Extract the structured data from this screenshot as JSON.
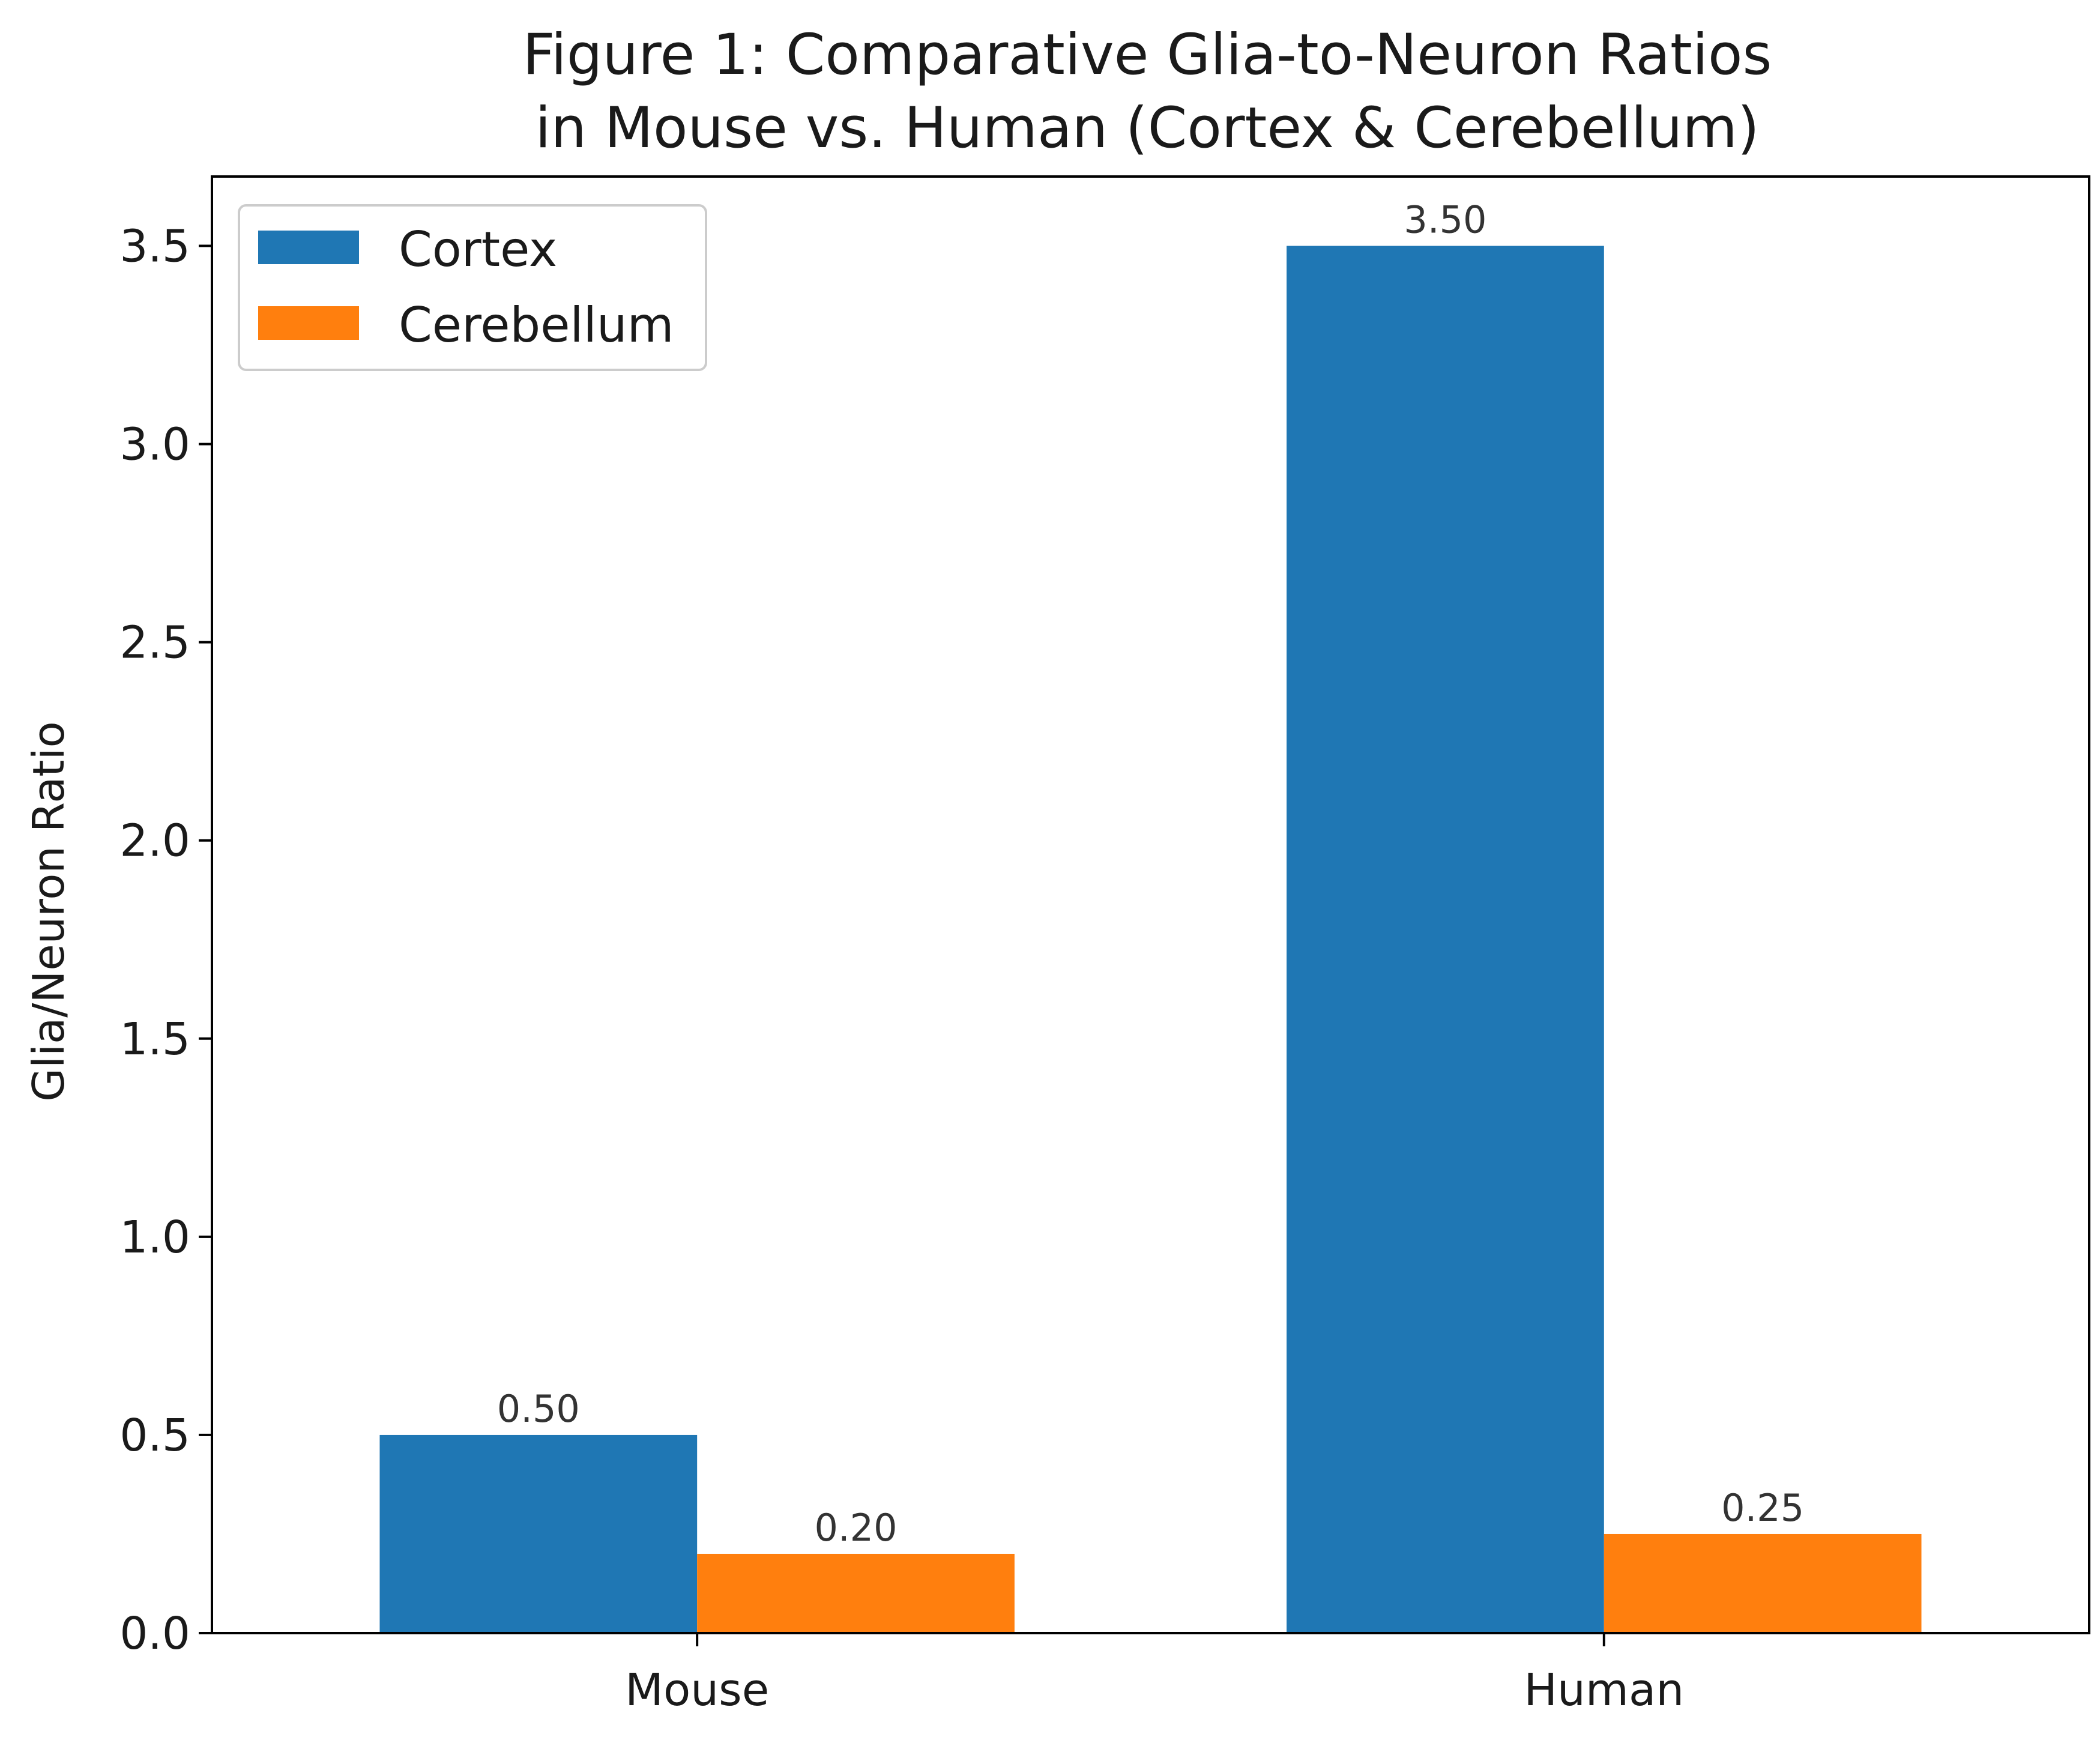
{
  "chart_data": {
    "type": "bar",
    "title": "Figure 1: Comparative Glia-to-Neuron Ratios\nin Mouse vs. Human (Cortex & Cerebellum)",
    "title_lines": [
      "Figure 1: Comparative Glia-to-Neuron Ratios",
      "in Mouse vs. Human (Cortex & Cerebellum)"
    ],
    "xlabel": "",
    "ylabel": "Glia/Neuron Ratio",
    "categories": [
      "Mouse",
      "Human"
    ],
    "series": [
      {
        "name": "Cortex",
        "color": "#1f77b4",
        "values": [
          0.5,
          3.5
        ],
        "labels": [
          "0.50",
          "3.50"
        ]
      },
      {
        "name": "Cerebellum",
        "color": "#ff7f0e",
        "values": [
          0.2,
          0.25
        ],
        "labels": [
          "0.20",
          "0.25"
        ]
      }
    ],
    "ylim": [
      0,
      3.675
    ],
    "yticks": [
      0.0,
      0.5,
      1.0,
      1.5,
      2.0,
      2.5,
      3.0,
      3.5
    ],
    "ytick_labels": [
      "0.0",
      "0.5",
      "1.0",
      "1.5",
      "2.0",
      "2.5",
      "3.0",
      "3.5"
    ],
    "grid": false,
    "legend_position": "top-left"
  }
}
